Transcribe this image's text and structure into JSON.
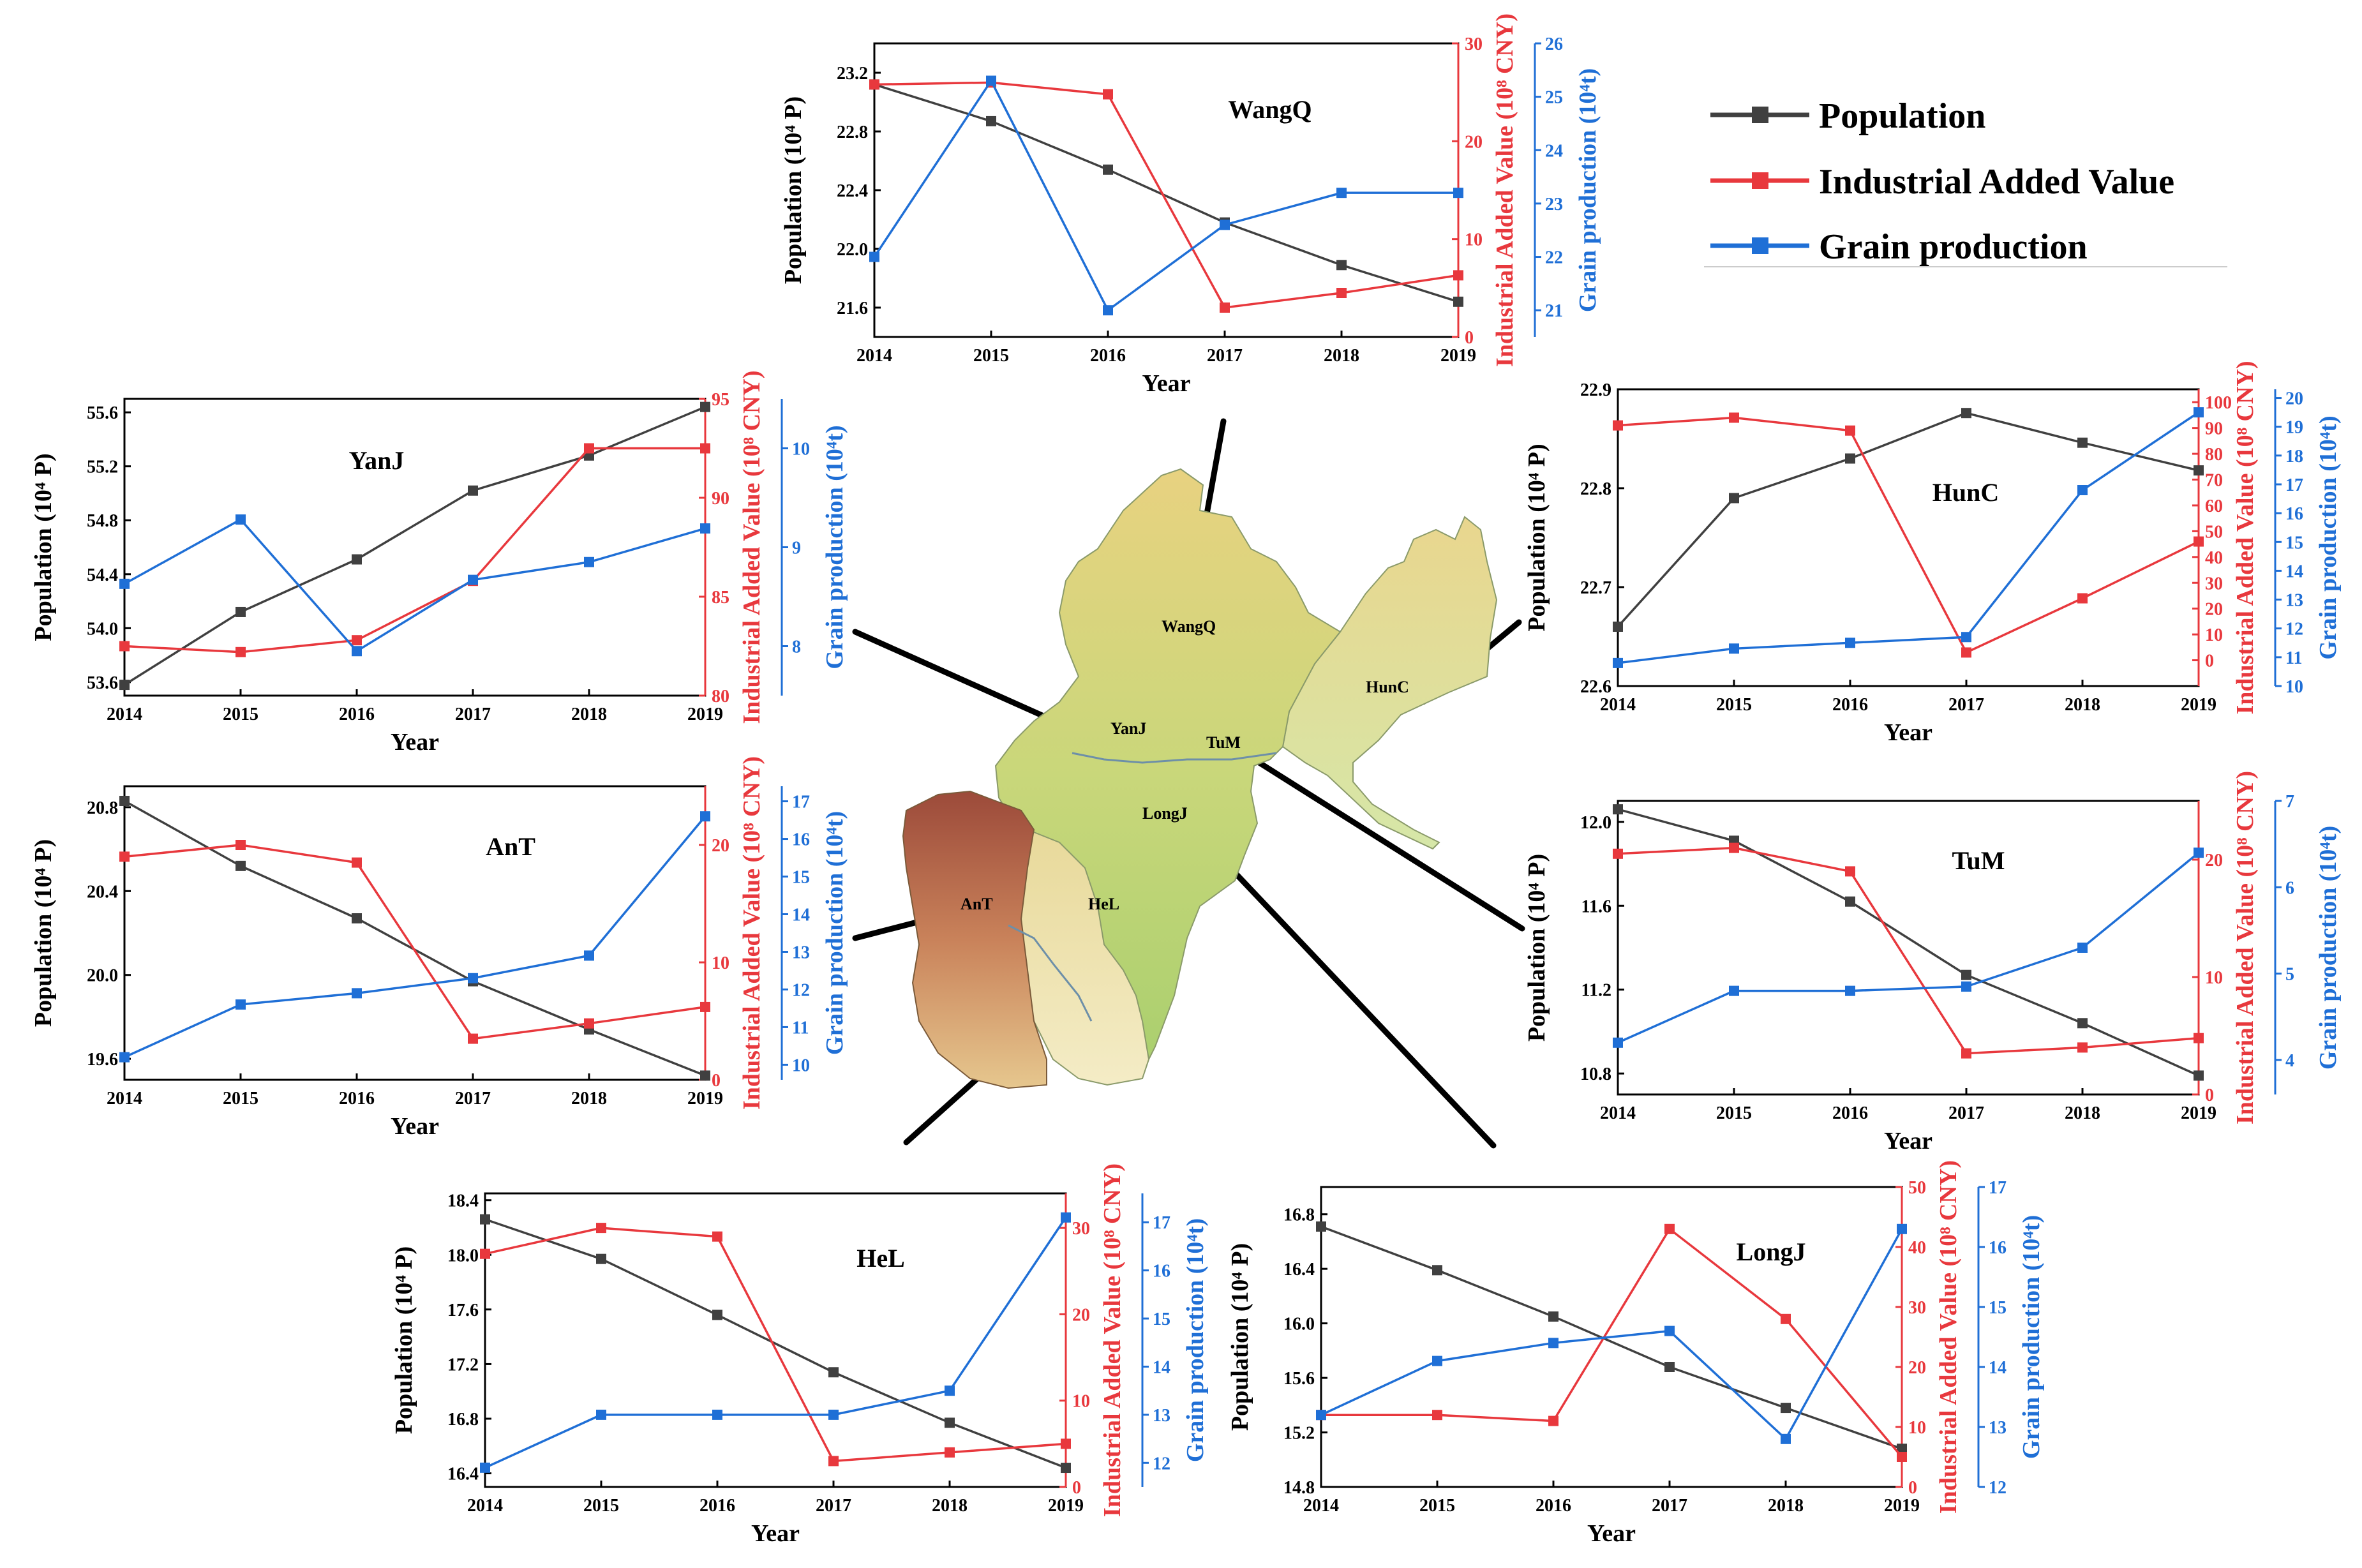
{
  "legend": {
    "items": [
      {
        "label": "Population",
        "color": "#404040"
      },
      {
        "label": "Industrial Added Value",
        "color": "#e8383d"
      },
      {
        "label": "Grain production",
        "color": "#1f6fd6"
      }
    ]
  },
  "axis_labels": {
    "x": "Year",
    "pop": "Population (10⁴ P)",
    "iav": "Industrial Added Value (10⁸ CNY)",
    "grain": "Grain production (10⁴t)"
  },
  "map": {
    "labels": [
      "WangQ",
      "YanJ",
      "TuM",
      "HunC",
      "LongJ",
      "AnT",
      "HeL"
    ]
  },
  "chart_data": [
    {
      "type": "line",
      "title": "WangQ",
      "x": [
        2014,
        2015,
        2016,
        2017,
        2018,
        2019
      ],
      "xlabel": "Year",
      "population": {
        "values": [
          23.12,
          22.87,
          22.54,
          22.18,
          21.89,
          21.64
        ],
        "ylim": [
          21.4,
          23.4
        ],
        "ticks": [
          "21.6",
          "22.0",
          "22.4",
          "22.8",
          "23.2"
        ]
      },
      "industrial_added_value": {
        "values": [
          25.8,
          26.0,
          24.8,
          3.0,
          4.5,
          6.3
        ],
        "ylim": [
          0,
          30
        ],
        "ticks": [
          "0",
          "10",
          "20",
          "30"
        ]
      },
      "grain_production": {
        "values": [
          22.0,
          25.3,
          21.0,
          22.6,
          23.2,
          23.2
        ],
        "ylim": [
          20.5,
          26
        ],
        "ticks": [
          "21",
          "22",
          "23",
          "24",
          "25",
          "26"
        ]
      }
    },
    {
      "type": "line",
      "title": "YanJ",
      "x": [
        2014,
        2015,
        2016,
        2017,
        2018,
        2019
      ],
      "xlabel": "Year",
      "population": {
        "values": [
          53.58,
          54.12,
          54.51,
          55.02,
          55.28,
          55.64
        ],
        "ylim": [
          53.5,
          55.7
        ],
        "ticks": [
          "53.6",
          "54.0",
          "54.4",
          "54.8",
          "55.2",
          "55.6"
        ]
      },
      "industrial_added_value": {
        "values": [
          82.5,
          82.2,
          82.8,
          85.8,
          92.5,
          92.5
        ],
        "ylim": [
          80,
          95
        ],
        "ticks": [
          "80",
          "85",
          "90",
          "95"
        ]
      },
      "grain_production": {
        "values": [
          8.63,
          9.28,
          7.95,
          8.67,
          8.85,
          9.19
        ],
        "ylim": [
          7.5,
          10.5
        ],
        "ticks": [
          "8",
          "9",
          "10"
        ]
      }
    },
    {
      "type": "line",
      "title": "HunC",
      "x": [
        2014,
        2015,
        2016,
        2017,
        2018,
        2019
      ],
      "xlabel": "Year",
      "population": {
        "values": [
          22.66,
          22.79,
          22.83,
          22.876,
          22.846,
          22.818
        ],
        "ylim": [
          22.6,
          22.9
        ],
        "ticks": [
          "22.6",
          "22.7",
          "22.8",
          "22.9"
        ]
      },
      "industrial_added_value": {
        "values": [
          91,
          94,
          89,
          3,
          24,
          46
        ],
        "ylim": [
          -10,
          105
        ],
        "ticks": [
          "0",
          "10",
          "20",
          "30",
          "40",
          "50",
          "60",
          "70",
          "80",
          "90",
          "100"
        ]
      },
      "grain_production": {
        "values": [
          10.8,
          11.3,
          11.5,
          11.7,
          16.8,
          19.5
        ],
        "ylim": [
          10,
          20.3
        ],
        "ticks": [
          "10",
          "11",
          "12",
          "13",
          "14",
          "15",
          "16",
          "17",
          "18",
          "19",
          "20"
        ]
      }
    },
    {
      "type": "line",
      "title": "AnT",
      "x": [
        2014,
        2015,
        2016,
        2017,
        2018,
        2019
      ],
      "xlabel": "Year",
      "population": {
        "values": [
          20.83,
          20.52,
          20.27,
          19.97,
          19.74,
          19.52
        ],
        "ylim": [
          19.5,
          20.9
        ],
        "ticks": [
          "19.6",
          "20.0",
          "20.4",
          "20.8"
        ]
      },
      "industrial_added_value": {
        "values": [
          19.0,
          20.0,
          18.5,
          3.5,
          4.8,
          6.2
        ],
        "ylim": [
          0,
          25
        ],
        "ticks": [
          "0",
          "10",
          "20"
        ]
      },
      "grain_production": {
        "values": [
          10.2,
          11.6,
          11.9,
          12.3,
          12.9,
          16.6
        ],
        "ylim": [
          9.6,
          17.4
        ],
        "ticks": [
          "10",
          "11",
          "12",
          "13",
          "14",
          "15",
          "16",
          "17"
        ]
      }
    },
    {
      "type": "line",
      "title": "TuM",
      "x": [
        2014,
        2015,
        2016,
        2017,
        2018,
        2019
      ],
      "xlabel": "Year",
      "population": {
        "values": [
          12.06,
          11.91,
          11.62,
          11.27,
          11.04,
          10.79
        ],
        "ylim": [
          10.7,
          12.1
        ],
        "ticks": [
          "10.8",
          "11.2",
          "11.6",
          "12.0"
        ]
      },
      "industrial_added_value": {
        "values": [
          20.5,
          21.0,
          19.0,
          3.5,
          4.0,
          4.8
        ],
        "ylim": [
          0,
          25
        ],
        "ticks": [
          "0",
          "10",
          "20"
        ]
      },
      "grain_production": {
        "values": [
          4.2,
          4.8,
          4.8,
          4.85,
          5.3,
          6.4
        ],
        "ylim": [
          3.6,
          7
        ],
        "ticks": [
          "4",
          "5",
          "6",
          "7"
        ]
      }
    },
    {
      "type": "line",
      "title": "HeL",
      "x": [
        2014,
        2015,
        2016,
        2017,
        2018,
        2019
      ],
      "xlabel": "Year",
      "population": {
        "values": [
          18.26,
          17.97,
          17.56,
          17.14,
          16.77,
          16.44
        ],
        "ylim": [
          16.3,
          18.45
        ],
        "ticks": [
          "16.4",
          "16.8",
          "17.2",
          "17.6",
          "18.0",
          "18.4"
        ]
      },
      "industrial_added_value": {
        "values": [
          27.0,
          30.0,
          29.0,
          3.0,
          4.0,
          5.0
        ],
        "ylim": [
          0,
          34
        ],
        "ticks": [
          "0",
          "10",
          "20",
          "30"
        ]
      },
      "grain_production": {
        "values": [
          11.9,
          13.0,
          13.0,
          13.0,
          13.5,
          17.1
        ],
        "ylim": [
          11.5,
          17.6
        ],
        "ticks": [
          "12",
          "13",
          "14",
          "15",
          "16",
          "17"
        ]
      }
    },
    {
      "type": "line",
      "title": "LongJ",
      "x": [
        2014,
        2015,
        2016,
        2017,
        2018,
        2019
      ],
      "xlabel": "Year",
      "population": {
        "values": [
          16.71,
          16.39,
          16.05,
          15.68,
          15.38,
          15.08
        ],
        "ylim": [
          14.8,
          17.0
        ],
        "ticks": [
          "14.8",
          "15.2",
          "15.6",
          "16.0",
          "16.4",
          "16.8"
        ]
      },
      "industrial_added_value": {
        "values": [
          12,
          12,
          11,
          43,
          28,
          5
        ],
        "ylim": [
          0,
          50
        ],
        "ticks": [
          "0",
          "10",
          "20",
          "30",
          "40",
          "50"
        ]
      },
      "grain_production": {
        "values": [
          13.2,
          14.1,
          14.4,
          14.6,
          12.8,
          16.3
        ],
        "ylim": [
          12,
          17
        ],
        "ticks": [
          "12",
          "13",
          "14",
          "15",
          "16",
          "17"
        ]
      }
    }
  ]
}
